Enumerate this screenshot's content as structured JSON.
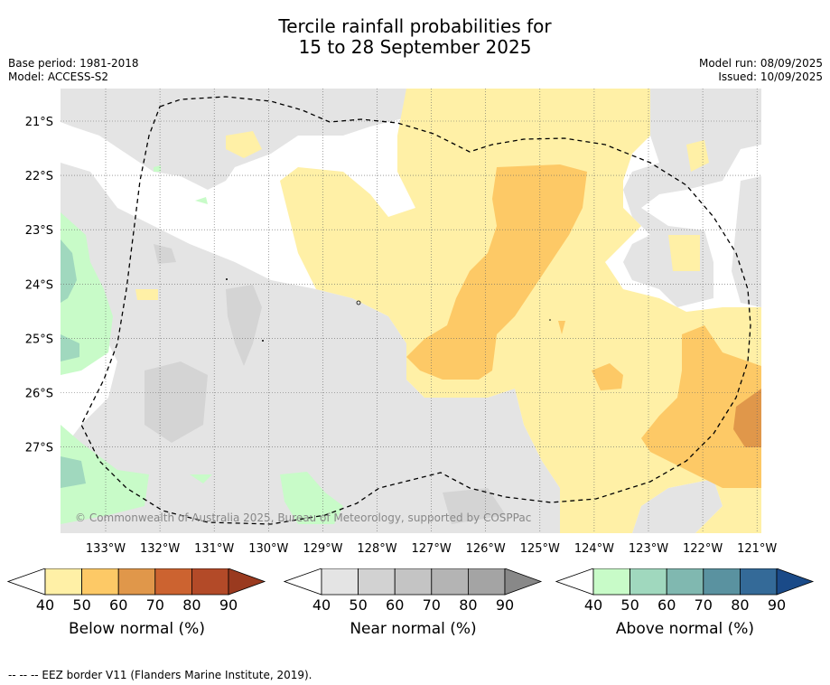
{
  "title_line1": "Tercile rainfall probabilities for",
  "title_line2": "15 to 28 September 2025",
  "base_period": "Base period: 1981-2018",
  "model": "Model: ACCESS-S2",
  "model_run": "Model run: 08/09/2025",
  "issued": "Issued: 10/09/2025",
  "copyright": "© Commonwealth of Australia 2025, Bureau of Meteorology, supported by COSPPac",
  "footer": "-- -- -- EEZ border V11 (Flanders Marine Institute, 2019).",
  "map": {
    "lon_labels": [
      "133°W",
      "132°W",
      "131°W",
      "130°W",
      "129°W",
      "128°W",
      "127°W",
      "126°W",
      "125°W",
      "124°W",
      "123°W",
      "122°W",
      "121°W"
    ],
    "lat_labels": [
      "21°S",
      "22°S",
      "23°S",
      "24°S",
      "25°S",
      "26°S",
      "27°S"
    ]
  },
  "colorbars": [
    {
      "label": "Below normal (%)",
      "ticks": [
        "40",
        "50",
        "60",
        "70",
        "80",
        "90"
      ],
      "colors": [
        "#fff0a6",
        "#fdc966",
        "#e0974a",
        "#cc6330",
        "#b34a28",
        "#9a3a1f"
      ]
    },
    {
      "label": "Near normal (%)",
      "ticks": [
        "40",
        "50",
        "60",
        "70",
        "80",
        "90"
      ],
      "colors": [
        "#e4e4e4",
        "#d2d2d2",
        "#c4c4c4",
        "#b4b4b4",
        "#a4a4a4",
        "#888888"
      ]
    },
    {
      "label": "Above normal (%)",
      "ticks": [
        "40",
        "50",
        "60",
        "70",
        "80",
        "90"
      ],
      "colors": [
        "#c8fbc8",
        "#a0d8be",
        "#80b8b0",
        "#5a92a0",
        "#346a98",
        "#1a4a88"
      ]
    }
  ]
}
